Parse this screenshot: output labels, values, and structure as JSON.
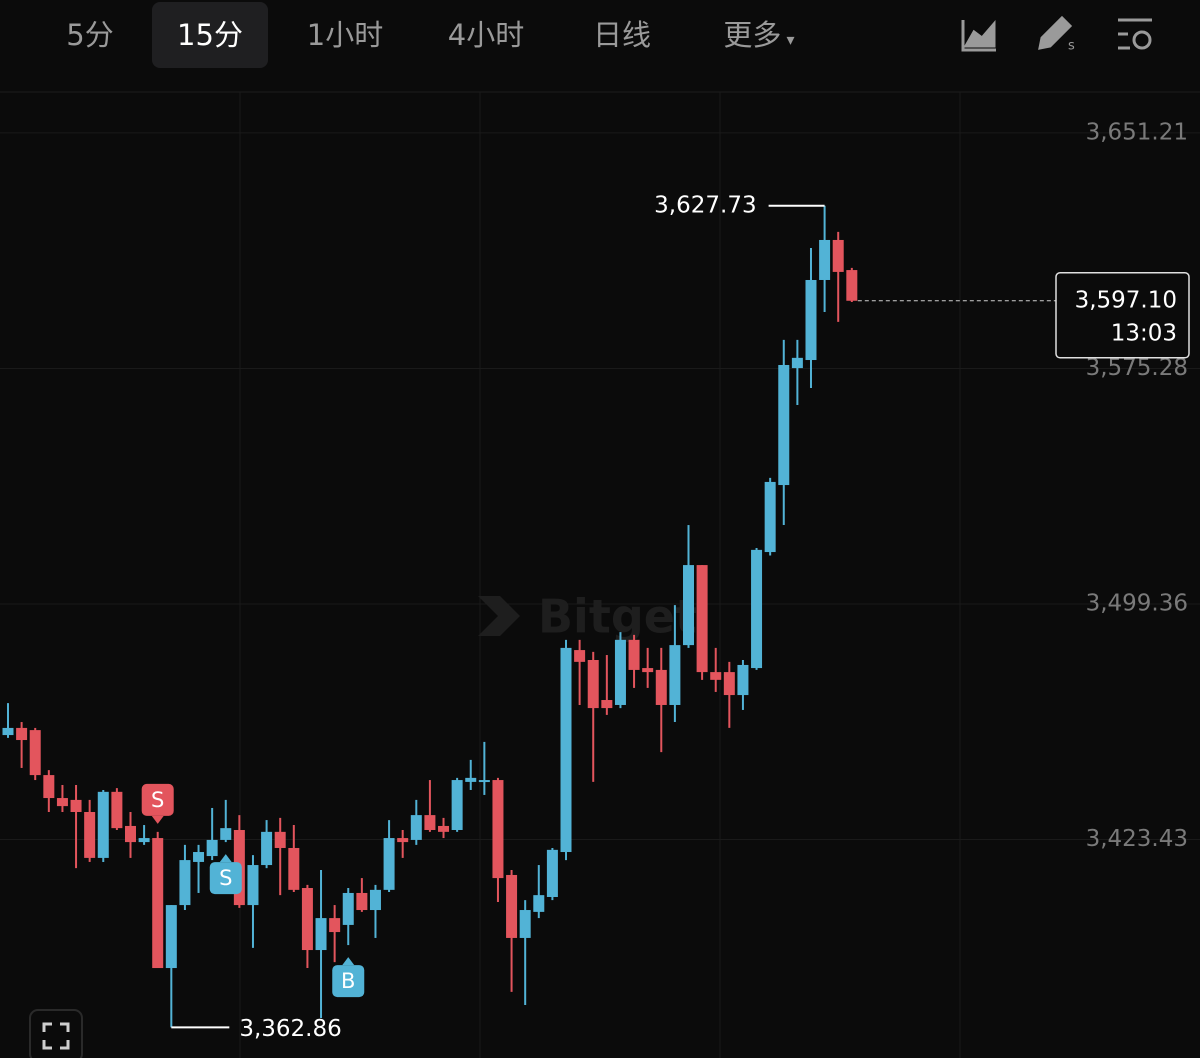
{
  "toolbar": {
    "tabs": [
      "5分",
      "15分",
      "1小时",
      "4小时",
      "日线",
      "更多"
    ],
    "active": 1
  },
  "chart_data": {
    "type": "candlestick",
    "watermark": "Bitget",
    "up_color": "#52b3d6",
    "down_color": "#e3555d",
    "open": [
      3457.1,
      3459.4,
      3458.7,
      3444.2,
      3436.8,
      3436.2,
      3432.3,
      3417.5,
      3438.8,
      3427.8,
      3422.6,
      3423.9,
      3382.0,
      3402.3,
      3416.2,
      3418.1,
      3423.3,
      3426.5,
      3402.3,
      3415.2,
      3425.9,
      3420.7,
      3407.8,
      3387.8,
      3398.1,
      3395.9,
      3406.2,
      3400.7,
      3407.2,
      3423.9,
      3423.3,
      3431.3,
      3427.8,
      3426.5,
      3442.0,
      3442.0,
      3442.6,
      3412.0,
      3391.7,
      3400.1,
      3404.9,
      3419.4,
      3484.5,
      3481.3,
      3468.4,
      3466.8,
      3487.8,
      3478.7,
      3478.1,
      3466.8,
      3486.1,
      3511.9,
      3477.4,
      3477.4,
      3470.0,
      3478.7,
      3516.1,
      3537.7,
      3575.4,
      3578.0,
      3603.8,
      3616.7,
      3607.0
    ],
    "high": [
      3467.4,
      3461.3,
      3459.4,
      3445.8,
      3441.0,
      3441.0,
      3436.2,
      3439.4,
      3440.0,
      3432.3,
      3428.1,
      3425.9,
      3402.3,
      3421.7,
      3421.7,
      3433.6,
      3436.2,
      3431.3,
      3418.4,
      3429.7,
      3430.4,
      3428.1,
      3408.8,
      3413.6,
      3402.3,
      3407.8,
      3411.0,
      3408.8,
      3429.7,
      3426.5,
      3436.2,
      3442.6,
      3430.4,
      3443.3,
      3449.1,
      3454.9,
      3443.3,
      3413.6,
      3403.9,
      3415.2,
      3420.7,
      3487.8,
      3487.8,
      3483.9,
      3482.9,
      3490.3,
      3489.4,
      3485.2,
      3485.2,
      3499.0,
      3524.8,
      3511.9,
      3485.2,
      3480.7,
      3481.3,
      3517.4,
      3540.0,
      3584.5,
      3584.5,
      3614.1,
      3627.73,
      3619.3,
      3607.7
    ],
    "low": [
      3456.2,
      3446.5,
      3442.6,
      3432.3,
      3432.3,
      3414.2,
      3416.2,
      3416.2,
      3426.5,
      3417.5,
      3421.7,
      3382.0,
      3362.86,
      3400.7,
      3406.2,
      3416.8,
      3422.6,
      3401.4,
      3388.5,
      3414.2,
      3405.5,
      3406.5,
      3382.0,
      3365.9,
      3383.9,
      3389.4,
      3400.1,
      3391.7,
      3406.5,
      3417.5,
      3421.7,
      3425.9,
      3423.9,
      3425.9,
      3439.4,
      3437.8,
      3403.3,
      3374.3,
      3370.1,
      3398.1,
      3403.9,
      3416.8,
      3466.8,
      3442.0,
      3463.6,
      3465.8,
      3472.3,
      3472.3,
      3451.6,
      3461.3,
      3485.2,
      3474.9,
      3471.0,
      3459.4,
      3465.2,
      3478.1,
      3515.0,
      3524.8,
      3563.5,
      3569.0,
      3593.5,
      3590.3,
      3596.7
    ],
    "close": [
      3459.4,
      3455.5,
      3444.2,
      3436.8,
      3434.2,
      3432.3,
      3417.5,
      3438.8,
      3427.1,
      3422.6,
      3423.9,
      3382.0,
      3402.3,
      3416.8,
      3419.4,
      3423.3,
      3427.1,
      3402.3,
      3415.2,
      3425.9,
      3420.7,
      3407.2,
      3387.8,
      3398.1,
      3393.6,
      3406.2,
      3400.7,
      3407.2,
      3423.9,
      3422.6,
      3431.3,
      3426.5,
      3425.9,
      3442.6,
      3443.3,
      3442.6,
      3411.0,
      3391.7,
      3400.7,
      3405.5,
      3420.1,
      3485.2,
      3480.7,
      3465.8,
      3465.8,
      3487.8,
      3478.1,
      3477.4,
      3466.8,
      3486.1,
      3511.9,
      3477.4,
      3474.9,
      3470.0,
      3479.7,
      3516.8,
      3538.7,
      3576.4,
      3578.7,
      3603.8,
      3616.7,
      3606.4,
      3597.1
    ],
    "ylim": [
      3353.0,
      3664.4
    ],
    "yticks": [
      {
        "value": 3423.43,
        "label": "3,423.43"
      },
      {
        "value": 3499.36,
        "label": "3,499.36"
      },
      {
        "value": 3575.28,
        "label": "3,575.28"
      },
      {
        "value": 3651.21,
        "label": "3,651.21"
      }
    ],
    "grid": true,
    "high_label": {
      "value": 3627.73,
      "label": "3,627.73"
    },
    "low_label": {
      "value": 3362.86,
      "label": "3,362.86"
    },
    "last_price": {
      "value": 3597.1,
      "label": "3,597.10"
    },
    "countdown": "13:03",
    "markers": [
      {
        "text": "S",
        "at": 11
      },
      {
        "text": "S",
        "at": 16
      },
      {
        "text": "B",
        "at": 25
      }
    ]
  }
}
